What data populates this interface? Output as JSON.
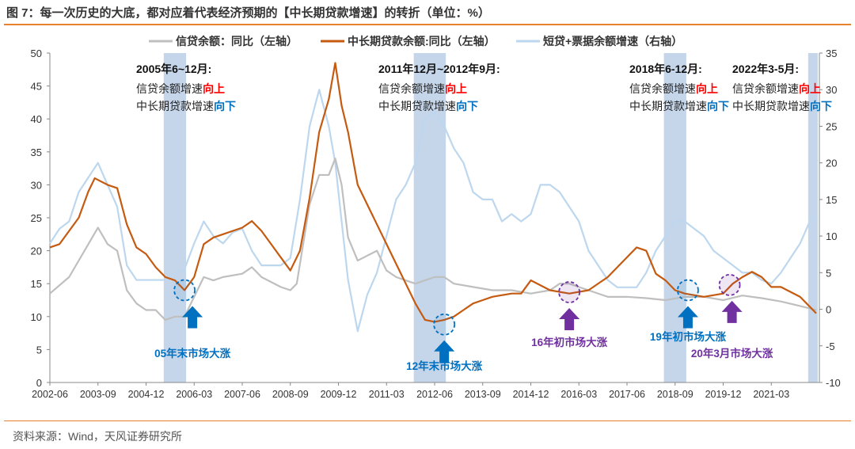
{
  "title": "图 7：每一次历史的大底，都对应着代表经济预期的【中长期贷款增速】的转折（单位：%）",
  "source": "资料来源：Wind，天风证券研究所",
  "colors": {
    "gray": "#bfbfbf",
    "orange": "#c55a11",
    "lightblue": "#bdd7ee",
    "band": "#c5d6ea",
    "blue": "#0070c0",
    "purple": "#7030a0",
    "red": "#ff0000"
  },
  "chart_data": {
    "type": "line",
    "title": "",
    "left_ylim": [
      0,
      50
    ],
    "right_ylim": [
      -10,
      35
    ],
    "left_ticks": [
      0,
      5,
      10,
      15,
      20,
      25,
      30,
      35,
      40,
      45,
      50
    ],
    "right_ticks": [
      -10,
      -5,
      0,
      5,
      10,
      15,
      20,
      25,
      30,
      35
    ],
    "x_range": [
      "2002-06",
      "2022-06"
    ],
    "x_ticks": [
      "2002-06",
      "2003-09",
      "2004-12",
      "2006-03",
      "2007-06",
      "2008-09",
      "2009-12",
      "2011-03",
      "2012-06",
      "2013-09",
      "2014-12",
      "2016-03",
      "2017-06",
      "2018-09",
      "2019-12",
      "2021-03"
    ],
    "legend_position": "top",
    "series": [
      {
        "name": "信贷余额：同比（左轴）",
        "axis": "left",
        "color": "#bfbfbf",
        "points": [
          [
            "2002-06",
            13.5
          ],
          [
            "2002-12",
            16
          ],
          [
            "2003-06",
            21
          ],
          [
            "2003-09",
            23.5
          ],
          [
            "2003-12",
            21
          ],
          [
            "2004-03",
            20
          ],
          [
            "2004-06",
            14
          ],
          [
            "2004-09",
            12
          ],
          [
            "2004-12",
            11
          ],
          [
            "2005-03",
            11
          ],
          [
            "2005-06",
            9.5
          ],
          [
            "2005-09",
            10
          ],
          [
            "2005-12",
            10
          ],
          [
            "2006-03",
            13
          ],
          [
            "2006-06",
            16
          ],
          [
            "2006-09",
            15.5
          ],
          [
            "2006-12",
            16
          ],
          [
            "2007-06",
            16.5
          ],
          [
            "2007-09",
            17.5
          ],
          [
            "2007-12",
            16
          ],
          [
            "2008-06",
            14.5
          ],
          [
            "2008-09",
            14
          ],
          [
            "2008-11",
            15
          ],
          [
            "2009-01",
            21
          ],
          [
            "2009-03",
            27
          ],
          [
            "2009-06",
            31.5
          ],
          [
            "2009-09",
            31.5
          ],
          [
            "2009-11",
            34
          ],
          [
            "2010-01",
            30
          ],
          [
            "2010-03",
            22
          ],
          [
            "2010-06",
            18.5
          ],
          [
            "2010-12",
            20
          ],
          [
            "2011-03",
            17
          ],
          [
            "2011-06",
            16
          ],
          [
            "2011-09",
            15.5
          ],
          [
            "2011-12",
            15
          ],
          [
            "2012-06",
            16
          ],
          [
            "2012-09",
            16
          ],
          [
            "2012-12",
            15
          ],
          [
            "2013-06",
            14.5
          ],
          [
            "2013-12",
            14
          ],
          [
            "2014-06",
            14
          ],
          [
            "2014-12",
            13.5
          ],
          [
            "2015-06",
            14
          ],
          [
            "2015-09",
            15
          ],
          [
            "2015-12",
            15
          ],
          [
            "2016-03",
            14.5
          ],
          [
            "2016-06",
            14
          ],
          [
            "2016-12",
            13
          ],
          [
            "2017-06",
            13
          ],
          [
            "2017-12",
            12.8
          ],
          [
            "2018-06",
            12.5
          ],
          [
            "2018-12",
            13
          ],
          [
            "2019-06",
            13
          ],
          [
            "2019-12",
            12.5
          ],
          [
            "2020-06",
            13.2
          ],
          [
            "2020-12",
            12.8
          ],
          [
            "2021-06",
            12.3
          ],
          [
            "2021-12",
            11.6
          ],
          [
            "2022-05",
            11
          ]
        ]
      },
      {
        "name": "中长期贷款余额:同比（左轴）",
        "axis": "left",
        "color": "#c55a11",
        "points": [
          [
            "2002-06",
            20.5
          ],
          [
            "2002-09",
            21
          ],
          [
            "2002-12",
            23
          ],
          [
            "2003-03",
            25
          ],
          [
            "2003-06",
            29
          ],
          [
            "2003-08",
            31
          ],
          [
            "2003-10",
            30.5
          ],
          [
            "2003-12",
            30
          ],
          [
            "2004-03",
            29.5
          ],
          [
            "2004-06",
            24
          ],
          [
            "2004-09",
            20.5
          ],
          [
            "2004-12",
            19.5
          ],
          [
            "2005-03",
            17.5
          ],
          [
            "2005-06",
            16
          ],
          [
            "2005-09",
            15.5
          ],
          [
            "2005-12",
            14
          ],
          [
            "2006-03",
            16
          ],
          [
            "2006-06",
            21
          ],
          [
            "2006-09",
            22
          ],
          [
            "2006-12",
            22.5
          ],
          [
            "2007-03",
            23
          ],
          [
            "2007-06",
            23.5
          ],
          [
            "2007-09",
            24.5
          ],
          [
            "2007-12",
            23
          ],
          [
            "2008-03",
            21
          ],
          [
            "2008-06",
            19
          ],
          [
            "2008-09",
            17
          ],
          [
            "2008-12",
            20
          ],
          [
            "2009-03",
            28
          ],
          [
            "2009-06",
            38
          ],
          [
            "2009-09",
            43
          ],
          [
            "2009-11",
            48.5
          ],
          [
            "2010-01",
            42
          ],
          [
            "2010-03",
            38
          ],
          [
            "2010-06",
            30
          ],
          [
            "2010-09",
            27
          ],
          [
            "2010-12",
            24
          ],
          [
            "2011-03",
            21
          ],
          [
            "2011-06",
            18
          ],
          [
            "2011-09",
            15
          ],
          [
            "2011-12",
            12
          ],
          [
            "2012-03",
            9.5
          ],
          [
            "2012-06",
            9.2
          ],
          [
            "2012-09",
            9.5
          ],
          [
            "2012-12",
            10
          ],
          [
            "2013-03",
            11
          ],
          [
            "2013-06",
            12
          ],
          [
            "2013-09",
            12.5
          ],
          [
            "2013-12",
            13
          ],
          [
            "2014-06",
            13.5
          ],
          [
            "2014-09",
            13.5
          ],
          [
            "2014-12",
            15.5
          ],
          [
            "2015-06",
            14
          ],
          [
            "2015-12",
            13.5
          ],
          [
            "2016-06",
            14
          ],
          [
            "2016-12",
            16
          ],
          [
            "2017-06",
            19
          ],
          [
            "2017-09",
            20.5
          ],
          [
            "2017-12",
            20
          ],
          [
            "2018-03",
            16.5
          ],
          [
            "2018-06",
            15.5
          ],
          [
            "2018-09",
            14
          ],
          [
            "2018-12",
            13.5
          ],
          [
            "2019-06",
            13
          ],
          [
            "2019-12",
            13.5
          ],
          [
            "2020-03",
            15
          ],
          [
            "2020-06",
            16
          ],
          [
            "2020-09",
            16.8
          ],
          [
            "2020-12",
            16
          ],
          [
            "2021-03",
            14.5
          ],
          [
            "2021-06",
            14.5
          ],
          [
            "2021-12",
            13
          ],
          [
            "2022-03",
            11.5
          ],
          [
            "2022-05",
            10.5
          ]
        ]
      },
      {
        "name": "短贷+票据余额增速（右轴）",
        "axis": "right",
        "color": "#bdd7ee",
        "points": [
          [
            "2002-06",
            9
          ],
          [
            "2002-09",
            11
          ],
          [
            "2002-12",
            12
          ],
          [
            "2003-03",
            16
          ],
          [
            "2003-06",
            18
          ],
          [
            "2003-09",
            20
          ],
          [
            "2003-12",
            17
          ],
          [
            "2004-03",
            14
          ],
          [
            "2004-06",
            6
          ],
          [
            "2004-09",
            4
          ],
          [
            "2004-12",
            4
          ],
          [
            "2005-03",
            4
          ],
          [
            "2005-06",
            4
          ],
          [
            "2005-09",
            5
          ],
          [
            "2005-12",
            5.5
          ],
          [
            "2006-03",
            9
          ],
          [
            "2006-06",
            12
          ],
          [
            "2006-09",
            10
          ],
          [
            "2006-12",
            9
          ],
          [
            "2007-03",
            10.5
          ],
          [
            "2007-06",
            11
          ],
          [
            "2007-09",
            8
          ],
          [
            "2007-12",
            6
          ],
          [
            "2008-03",
            6
          ],
          [
            "2008-06",
            6
          ],
          [
            "2008-09",
            7
          ],
          [
            "2008-12",
            15
          ],
          [
            "2009-03",
            25
          ],
          [
            "2009-06",
            30
          ],
          [
            "2009-09",
            25
          ],
          [
            "2009-11",
            20
          ],
          [
            "2010-01",
            12
          ],
          [
            "2010-03",
            4
          ],
          [
            "2010-06",
            -3
          ],
          [
            "2010-09",
            2
          ],
          [
            "2010-12",
            5
          ],
          [
            "2011-03",
            10
          ],
          [
            "2011-06",
            15
          ],
          [
            "2011-09",
            17
          ],
          [
            "2011-12",
            20
          ],
          [
            "2012-03",
            26
          ],
          [
            "2012-06",
            27
          ],
          [
            "2012-09",
            25
          ],
          [
            "2012-12",
            22
          ],
          [
            "2013-03",
            20
          ],
          [
            "2013-06",
            16
          ],
          [
            "2013-09",
            15
          ],
          [
            "2013-12",
            15
          ],
          [
            "2014-03",
            12
          ],
          [
            "2014-06",
            13
          ],
          [
            "2014-09",
            12
          ],
          [
            "2014-12",
            13
          ],
          [
            "2015-03",
            17
          ],
          [
            "2015-06",
            17
          ],
          [
            "2015-09",
            16
          ],
          [
            "2015-12",
            14
          ],
          [
            "2016-03",
            12
          ],
          [
            "2016-06",
            8
          ],
          [
            "2016-09",
            6
          ],
          [
            "2016-12",
            4
          ],
          [
            "2017-03",
            3
          ],
          [
            "2017-06",
            3
          ],
          [
            "2017-09",
            3
          ],
          [
            "2017-12",
            5
          ],
          [
            "2018-03",
            8
          ],
          [
            "2018-06",
            10
          ],
          [
            "2018-09",
            12
          ],
          [
            "2018-12",
            12
          ],
          [
            "2019-03",
            11
          ],
          [
            "2019-06",
            10
          ],
          [
            "2019-09",
            8
          ],
          [
            "2019-12",
            7
          ],
          [
            "2020-03",
            6
          ],
          [
            "2020-06",
            5
          ],
          [
            "2020-09",
            5
          ],
          [
            "2020-12",
            4
          ],
          [
            "2021-03",
            3.5
          ],
          [
            "2021-06",
            5
          ],
          [
            "2021-09",
            7
          ],
          [
            "2021-12",
            9
          ],
          [
            "2022-03",
            12
          ],
          [
            "2022-05",
            13
          ]
        ]
      }
    ],
    "bands": [
      [
        "2005-06",
        "2005-12"
      ],
      [
        "2011-12",
        "2012-09"
      ],
      [
        "2018-06",
        "2018-12"
      ],
      [
        "2022-03",
        "2022-05"
      ]
    ],
    "callouts": [
      {
        "heading": "2005年6~12月:",
        "line1": "信贷余额增速",
        "line1_em": "向上",
        "line2": "中长期贷款增速",
        "line2_em": "向下"
      },
      {
        "heading": "2011年12月~2012年9月:",
        "line1": "信贷余额增速",
        "line1_em": "向上",
        "line2": "中长期贷款增速",
        "line2_em": "向下"
      },
      {
        "heading": "2018年6-12月:",
        "line1": "信贷余额增速",
        "line1_em": "向上",
        "line2": "中长期贷款增速",
        "line2_em": "向下"
      },
      {
        "heading": "2022年3-5月:",
        "line1": "信贷余额增速",
        "line1_em": "向上",
        "line2": "中长期贷款增速",
        "line2_em": "向下"
      }
    ],
    "markers": [
      {
        "label": "05年末市场大涨",
        "date": "2005-12",
        "value": 14,
        "color": "blue"
      },
      {
        "label": "12年末市场大涨",
        "date": "2012-09",
        "value": 8.8,
        "color": "blue"
      },
      {
        "label": "16年初市场大涨",
        "date": "2015-12",
        "value": 13.7,
        "color": "purple"
      },
      {
        "label": "19年初市场大涨",
        "date": "2019-01",
        "value": 14,
        "color": "blue"
      },
      {
        "label": "20年3月市场大涨",
        "date": "2020-02",
        "value": 14.8,
        "color": "purple"
      }
    ]
  }
}
